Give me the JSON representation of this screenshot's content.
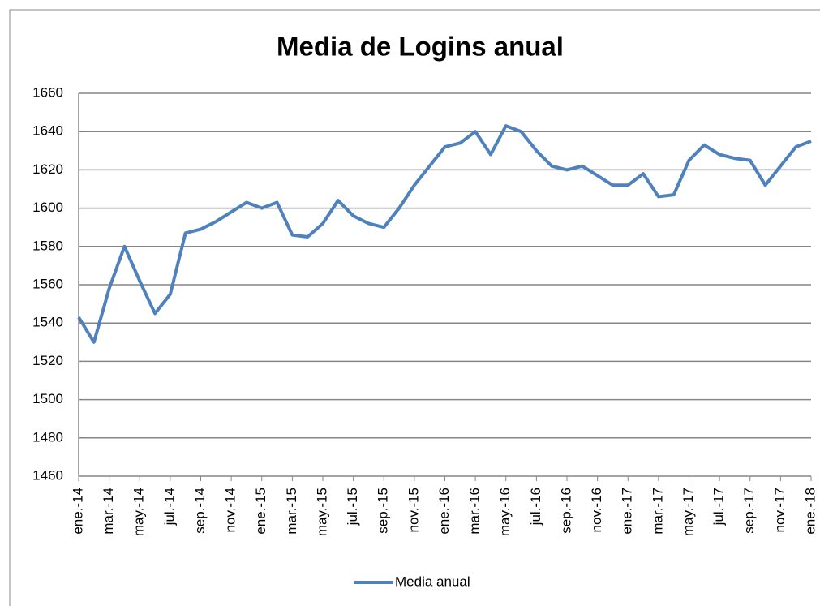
{
  "chart_data": {
    "type": "line",
    "title": "Media de Logins anual",
    "categories": [
      "ene.-14",
      null,
      "mar.-14",
      null,
      "may.-14",
      null,
      "jul.-14",
      null,
      "sep.-14",
      null,
      "nov.-14",
      null,
      "ene.-15",
      null,
      "mar.-15",
      null,
      "may.-15",
      null,
      "jul.-15",
      null,
      "sep.-15",
      null,
      "nov.-15",
      null,
      "ene.-16",
      null,
      "mar.-16",
      null,
      "may.-16",
      null,
      "jul.-16",
      null,
      "sep.-16",
      null,
      "nov.-16",
      null,
      "ene.-17",
      null,
      "mar.-17",
      null,
      "may.-17",
      null,
      "jul.-17",
      null,
      "sep.-17",
      null,
      "nov.-17",
      null,
      "ene.-18"
    ],
    "series": [
      {
        "name": "Media anual",
        "color": "#4f81bd",
        "values": [
          1543,
          1530,
          1558,
          1580,
          1562,
          1545,
          1555,
          1587,
          1589,
          1593,
          1598,
          1603,
          1600,
          1603,
          1586,
          1585,
          1592,
          1604,
          1596,
          1592,
          1590,
          1600,
          1612,
          1622,
          1632,
          1634,
          1640,
          1628,
          1643,
          1640,
          1630,
          1622,
          1620,
          1622,
          1617,
          1612,
          1612,
          1618,
          1606,
          1607,
          1625,
          1633,
          1628,
          1626,
          1625,
          1612,
          1622,
          1632,
          1635
        ]
      }
    ],
    "ylim": [
      1460,
      1660
    ],
    "yticks": [
      1460,
      1480,
      1500,
      1520,
      1540,
      1560,
      1580,
      1600,
      1620,
      1640,
      1660
    ],
    "grid": true,
    "legend": "bottom"
  }
}
